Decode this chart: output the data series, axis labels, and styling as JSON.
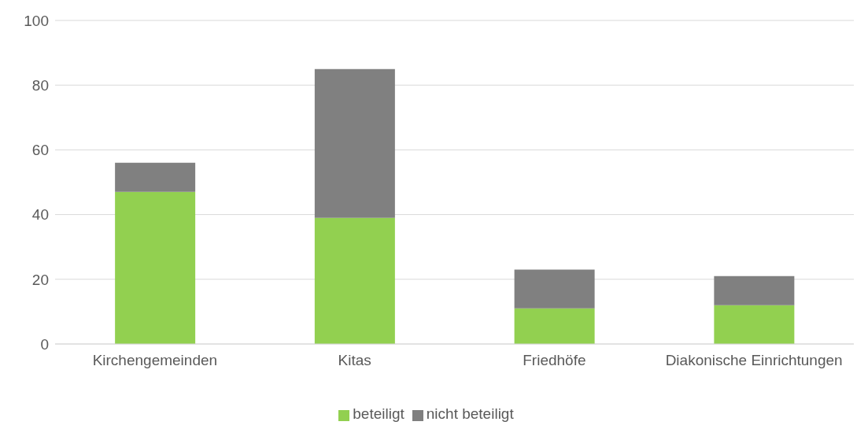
{
  "chart_data": {
    "type": "bar",
    "stacked": true,
    "categories": [
      "Kirchengemeinden",
      "Kitas",
      "Friedhöfe",
      "Diakonische Einrichtungen"
    ],
    "series": [
      {
        "name": "beteiligt",
        "color": "#92d050",
        "values": [
          47,
          39,
          11,
          12
        ]
      },
      {
        "name": "nicht beteiligt",
        "color": "#808080",
        "values": [
          9,
          46,
          12,
          9
        ]
      }
    ],
    "ylim": [
      0,
      100
    ],
    "yticks": [
      0,
      20,
      40,
      60,
      80,
      100
    ],
    "grid": "y",
    "legend": "bottom"
  }
}
